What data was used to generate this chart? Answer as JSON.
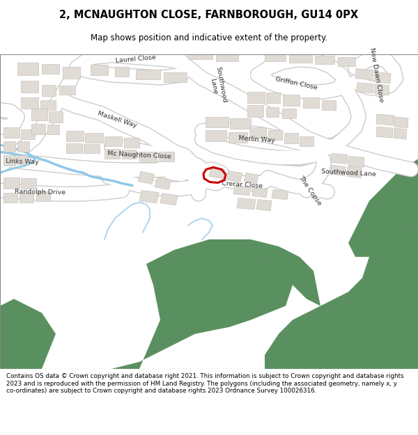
{
  "title_line1": "2, MCNAUGHTON CLOSE, FARNBOROUGH, GU14 0PX",
  "title_line2": "Map shows position and indicative extent of the property.",
  "footer_text": "Contains OS data © Crown copyright and database right 2021. This information is subject to Crown copyright and database rights 2023 and is reproduced with the permission of HM Land Registry. The polygons (including the associated geometry, namely x, y co-ordinates) are subject to Crown copyright and database rights 2023 Ordnance Survey 100026316.",
  "map_bg": "#f5f3f0",
  "road_color": "#ffffff",
  "road_edge": "#cccccc",
  "building_color": "#e0dbd5",
  "building_edge": "#c8c3be",
  "green_dark": "#5a9060",
  "green_mid": "#6a9e6e",
  "blue_color": "#8ec8e8",
  "marker_color": "#cc0000",
  "title_bg": "#ffffff",
  "border_color": "#aaaaaa"
}
